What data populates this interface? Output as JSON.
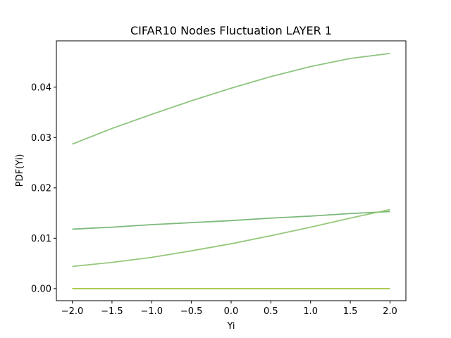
{
  "chart_data": {
    "type": "line",
    "title": "CIFAR10 Nodes Fluctuation LAYER 1",
    "xlabel": "Yi",
    "ylabel": "PDF(Yi)",
    "xlim": [
      -2.2,
      2.2
    ],
    "ylim": [
      -0.0024,
      0.0492
    ],
    "xticks": [
      -2.0,
      -1.5,
      -1.0,
      -0.5,
      0.0,
      0.5,
      1.0,
      1.5,
      2.0
    ],
    "xtick_labels": [
      "−2.0",
      "−1.5",
      "−1.0",
      "−0.5",
      "0.0",
      "0.5",
      "1.0",
      "1.5",
      "2.0"
    ],
    "yticks": [
      0.0,
      0.01,
      0.02,
      0.03,
      0.04
    ],
    "ytick_labels": [
      "0.00",
      "0.01",
      "0.02",
      "0.03",
      "0.04"
    ],
    "grid": false,
    "legend": "none",
    "series": [
      {
        "color": "#8dc57f",
        "x": [
          -2.0,
          -1.5,
          -1.0,
          -0.5,
          0.0,
          0.5,
          1.0,
          1.5,
          2.0
        ],
        "values": [
          0.0287,
          0.0318,
          0.0346,
          0.0373,
          0.0398,
          0.0421,
          0.0441,
          0.0457,
          0.0467
        ]
      },
      {
        "color": "#7cb97a",
        "x": [
          -2.0,
          -1.5,
          -1.0,
          -0.5,
          0.0,
          0.5,
          1.0,
          1.5,
          2.0
        ],
        "values": [
          0.0118,
          0.0122,
          0.0127,
          0.0131,
          0.0135,
          0.014,
          0.0144,
          0.0149,
          0.0153
        ]
      },
      {
        "color": "#96c87a",
        "x": [
          -2.0,
          -1.5,
          -1.0,
          -0.5,
          0.0,
          0.5,
          1.0,
          1.5,
          2.0
        ],
        "values": [
          0.0044,
          0.0052,
          0.0062,
          0.0075,
          0.0089,
          0.0105,
          0.0122,
          0.014,
          0.0157
        ]
      },
      {
        "color": "#a8c64a",
        "x": [
          -2.0,
          -1.5,
          -1.0,
          -0.5,
          0.0,
          0.5,
          1.0,
          1.5,
          2.0
        ],
        "values": [
          0.0,
          0.0,
          0.0,
          0.0,
          0.0,
          0.0,
          0.0,
          0.0,
          0.0
        ]
      }
    ]
  }
}
